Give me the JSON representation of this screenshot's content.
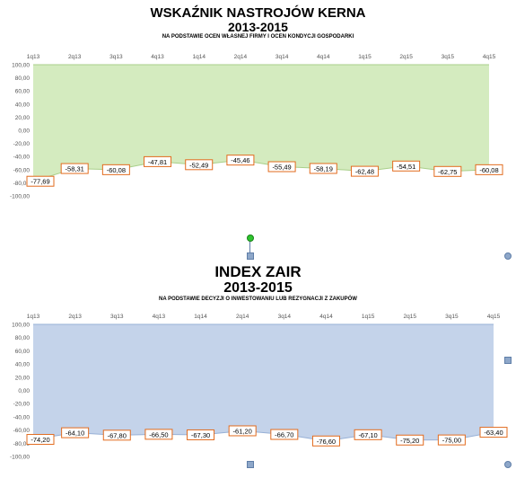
{
  "charts": [
    {
      "title": "WSKAŹNIK NASTROJÓW KERNA",
      "period": "2013-2015",
      "subtitle": "NA PODSTAWIE OCEN WŁASNEJ FIRMY I OCEN KONDYCJI GOSPODARKI"
    },
    {
      "title": "INDEX ZAIR",
      "period": "2013-2015",
      "subtitle": "NA PODSTAWIE DECYZJI  O INWESTOWANIU LUB REZYGNACJI Z ZAKUPÓW"
    }
  ],
  "chart_data": [
    {
      "type": "area",
      "title": "WSKAŹNIK NASTROJÓW KERNA",
      "categories": [
        "1q13",
        "2q13",
        "3q13",
        "4q13",
        "1q14",
        "2q14",
        "3q14",
        "4q14",
        "1q15",
        "2q15",
        "3q15",
        "4q15"
      ],
      "values": [
        -77.69,
        -58.31,
        -60.08,
        -47.81,
        -52.49,
        -45.46,
        -55.49,
        -58.19,
        -62.48,
        -54.51,
        -62.75,
        -60.08
      ],
      "value_labels": [
        "-77,69",
        "-58,31",
        "-60,08",
        "-47,81",
        "-52,49",
        "-45,46",
        "-55,49",
        "-58,19",
        "-62,48",
        "-54,51",
        "-62,75",
        "-60,08"
      ],
      "y_ticks": [
        "100,00",
        "80,00",
        "60,00",
        "40,00",
        "20,00",
        "0,00",
        "-20,00",
        "-40,00",
        "-60,00",
        "-80,00",
        "-100,00"
      ],
      "ylim": [
        -100,
        100
      ],
      "fill_color": "#d4ebbf",
      "line_color": "#a9cf8a",
      "label_border": "#e26b1e"
    },
    {
      "type": "area",
      "title": "INDEX ZAIR",
      "categories": [
        "1q13",
        "2q13",
        "3q13",
        "4q13",
        "1q14",
        "2q14",
        "3q14",
        "4q14",
        "1q15",
        "2q15",
        "3q15",
        "4q15"
      ],
      "values": [
        -74.2,
        -64.1,
        -67.8,
        -66.5,
        -67.3,
        -61.2,
        -66.7,
        -76.6,
        -67.1,
        -75.2,
        -75.0,
        -63.4
      ],
      "value_labels": [
        "-74,20",
        "-64,10",
        "-67,80",
        "-66,50",
        "-67,30",
        "-61,20",
        "-66,70",
        "-76,60",
        "-67,10",
        "-75,20",
        "-75,00",
        "-63,40"
      ],
      "y_ticks": [
        "100,00",
        "80,00",
        "60,00",
        "40,00",
        "20,00",
        "0,00",
        "-20,00",
        "-40,00",
        "-60,00",
        "-80,00",
        "-100,00"
      ],
      "ylim": [
        -100,
        100
      ],
      "fill_color": "#c4d3ea",
      "line_color": "#97b0d6",
      "label_border": "#e26b1e"
    }
  ]
}
